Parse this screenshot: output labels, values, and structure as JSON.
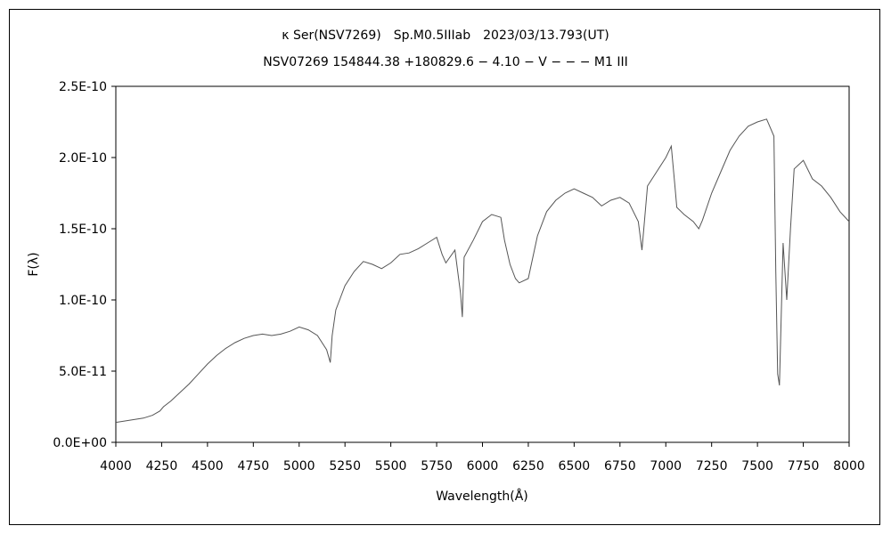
{
  "chart_data": {
    "type": "line",
    "title": "κ Ser(NSV7269)　Sp.M0.5IIIab　2023/03/13.793(UT)",
    "subtitle": "NSV07269 154844.38 +180829.6 − 4.10 − V − − − M1 III",
    "xlabel": "Wavelength(Å)",
    "ylabel": "F(λ)",
    "xlim": [
      4000,
      8000
    ],
    "ylim": [
      0,
      2.5e-10
    ],
    "grid": false,
    "xticks": [
      4000,
      4250,
      4500,
      4750,
      5000,
      5250,
      5500,
      5750,
      6000,
      6250,
      6500,
      6750,
      7000,
      7250,
      7500,
      7750,
      8000
    ],
    "xtick_labels": [
      "4000",
      "4250",
      "4500",
      "4750",
      "5000",
      "5250",
      "5500",
      "5750",
      "6000",
      "6250",
      "6500",
      "6750",
      "7000",
      "7250",
      "7500",
      "7750",
      "8000"
    ],
    "yticks": [
      0,
      5e-11,
      1e-10,
      1.5e-10,
      2e-10,
      2.5e-10
    ],
    "ytick_labels": [
      "0.0E+00",
      "5.0E-11",
      "1.0E-10",
      "1.5E-10",
      "2.0E-10",
      "2.5E-10"
    ],
    "series": [
      {
        "color": "#555555",
        "x": [
          4000,
          4050,
          4100,
          4150,
          4200,
          4240,
          4260,
          4300,
          4350,
          4400,
          4450,
          4500,
          4550,
          4600,
          4650,
          4700,
          4750,
          4800,
          4850,
          4900,
          4950,
          5000,
          5050,
          5100,
          5150,
          5170,
          5180,
          5200,
          5250,
          5300,
          5350,
          5400,
          5450,
          5500,
          5550,
          5600,
          5650,
          5700,
          5750,
          5780,
          5800,
          5850,
          5880,
          5890,
          5900,
          5950,
          6000,
          6050,
          6100,
          6120,
          6150,
          6180,
          6200,
          6250,
          6300,
          6350,
          6400,
          6450,
          6500,
          6550,
          6600,
          6650,
          6700,
          6750,
          6800,
          6850,
          6870,
          6900,
          6950,
          7000,
          7030,
          7050,
          7060,
          7100,
          7150,
          7180,
          7200,
          7250,
          7300,
          7350,
          7400,
          7450,
          7500,
          7550,
          7590,
          7600,
          7610,
          7620,
          7640,
          7660,
          7680,
          7700,
          7750,
          7800,
          7850,
          7900,
          7950,
          8000
        ],
        "y": [
          1.4e-11,
          1.5e-11,
          1.6e-11,
          1.7e-11,
          1.9e-11,
          2.2e-11,
          2.5e-11,
          2.9e-11,
          3.5e-11,
          4.1e-11,
          4.8e-11,
          5.5e-11,
          6.1e-11,
          6.6e-11,
          7e-11,
          7.3e-11,
          7.5e-11,
          7.6e-11,
          7.5e-11,
          7.6e-11,
          7.8e-11,
          8.1e-11,
          7.9e-11,
          7.5e-11,
          6.5e-11,
          5.6e-11,
          7.5e-11,
          9.3e-11,
          1.1e-10,
          1.2e-10,
          1.27e-10,
          1.25e-10,
          1.22e-10,
          1.26e-10,
          1.32e-10,
          1.33e-10,
          1.36e-10,
          1.4e-10,
          1.44e-10,
          1.32e-10,
          1.26e-10,
          1.35e-10,
          1.05e-10,
          8.8e-11,
          1.3e-10,
          1.42e-10,
          1.55e-10,
          1.6e-10,
          1.58e-10,
          1.42e-10,
          1.25e-10,
          1.15e-10,
          1.12e-10,
          1.15e-10,
          1.45e-10,
          1.62e-10,
          1.7e-10,
          1.75e-10,
          1.78e-10,
          1.75e-10,
          1.72e-10,
          1.66e-10,
          1.7e-10,
          1.72e-10,
          1.68e-10,
          1.55e-10,
          1.35e-10,
          1.8e-10,
          1.9e-10,
          2e-10,
          2.08e-10,
          1.8e-10,
          1.65e-10,
          1.6e-10,
          1.55e-10,
          1.5e-10,
          1.56e-10,
          1.75e-10,
          1.9e-10,
          2.05e-10,
          2.15e-10,
          2.22e-10,
          2.25e-10,
          2.27e-10,
          2.15e-10,
          1.2e-10,
          4.8e-11,
          4e-11,
          1.4e-10,
          1e-10,
          1.5e-10,
          1.92e-10,
          1.98e-10,
          1.85e-10,
          1.8e-10,
          1.72e-10,
          1.62e-10,
          1.55e-10
        ]
      }
    ]
  }
}
